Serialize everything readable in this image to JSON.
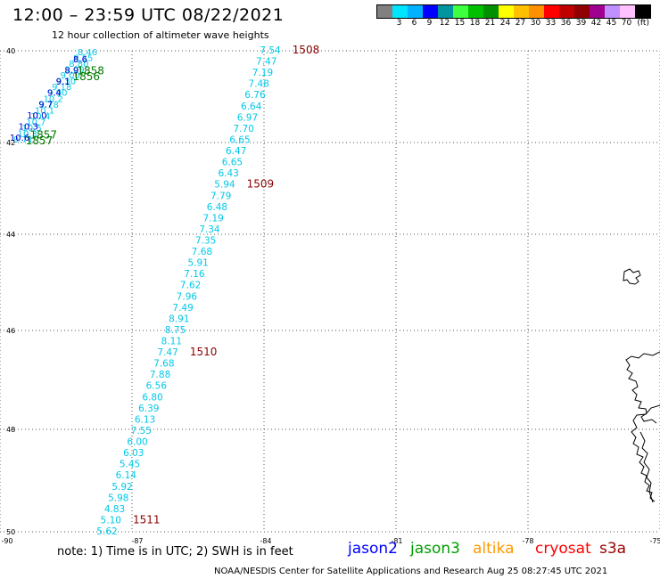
{
  "header": {
    "title": "12:00 – 23:59 UTC 08/22/2021",
    "subtitle": "12 hour collection of altimeter wave heights"
  },
  "colorbar": {
    "colors": [
      "#808080",
      "#00e5ff",
      "#00b2ff",
      "#0000ff",
      "#0096a0",
      "#40ff40",
      "#00c000",
      "#009000",
      "#ffff00",
      "#ffc000",
      "#ff9000",
      "#ff0000",
      "#c00000",
      "#900000",
      "#a00090",
      "#c090ff",
      "#ffc0ff",
      "#000000"
    ],
    "labels": [
      "3",
      "6",
      "9",
      "12",
      "15",
      "18",
      "21",
      "24",
      "27",
      "30",
      "33",
      "36",
      "39",
      "42",
      "45",
      "70"
    ],
    "unit": "(ft)"
  },
  "axes": {
    "lat_labels": [
      "40",
      "42",
      "44",
      "46",
      "48",
      "50"
    ],
    "lon_labels": [
      "-90",
      "-87",
      "-84",
      "-81",
      "-78",
      "-75"
    ]
  },
  "tracks": {
    "pass_a": {
      "color": "#00c8e8",
      "values": [
        "7.54",
        "7.47",
        "7.19",
        "7.48",
        "6.76",
        "6.64",
        "6.97",
        "7.70",
        "6.65",
        "6.47",
        "6.65",
        "6.43",
        "5.94",
        "7.79",
        "6.48",
        "7.19",
        "7.34",
        "7.35",
        "7.68",
        "5.91",
        "7.16",
        "7.62",
        "7.96",
        "7.49",
        "8.91",
        "8.75",
        "8.11",
        "7.47",
        "7.68",
        "7.88",
        "6.56",
        "6.80",
        "6.39",
        "6.13",
        "7.55",
        "6.00",
        "6.03",
        "5.45",
        "6.14",
        "5.92",
        "5.98",
        "4.83",
        "5.10",
        "5.62"
      ],
      "times": [
        {
          "label": "1508",
          "index": 0
        },
        {
          "label": "1509",
          "index": 12
        },
        {
          "label": "1510",
          "index": 27
        },
        {
          "label": "1511",
          "index": 42
        }
      ],
      "time_color": "#8b0000"
    },
    "pass_b": {
      "color": "#00c8e8",
      "values": [
        "8.46",
        "8.55",
        "8.80",
        "9.09",
        "9.00",
        "9.30",
        "9.18",
        "9.90",
        "10.2",
        "9.78",
        "10.1",
        "10.4",
        "10.7",
        "10.5",
        "10.3",
        "9.71"
      ],
      "times": [
        {
          "label": "1858",
          "index": 3
        },
        {
          "label": "1856",
          "index": 4
        },
        {
          "label": "1857",
          "index": 14
        },
        {
          "label": "1857",
          "index": 15
        }
      ],
      "time_color": "#007a00"
    },
    "pass_c": {
      "color": "#0000d0",
      "values": [
        "8.6",
        "8.9",
        "9.1",
        "9.4",
        "9.7",
        "10.0",
        "10.3",
        "10.6"
      ]
    }
  },
  "footer": {
    "note": "note:  1) Time is in UTC;  2) SWH is in feet",
    "legend": [
      {
        "name": "jason2",
        "color": "#0000ff"
      },
      {
        "name": "jason3",
        "color": "#00a000"
      },
      {
        "name": "altika",
        "color": "#ff9900"
      },
      {
        "name": "cryosat",
        "color": "#ff0000"
      },
      {
        "name": "s3a",
        "color": "#990000"
      }
    ],
    "credit": "NOAA/NESDIS Center for Satellite Applications and Research    Aug 25 08:27:45 UTC 2021"
  }
}
